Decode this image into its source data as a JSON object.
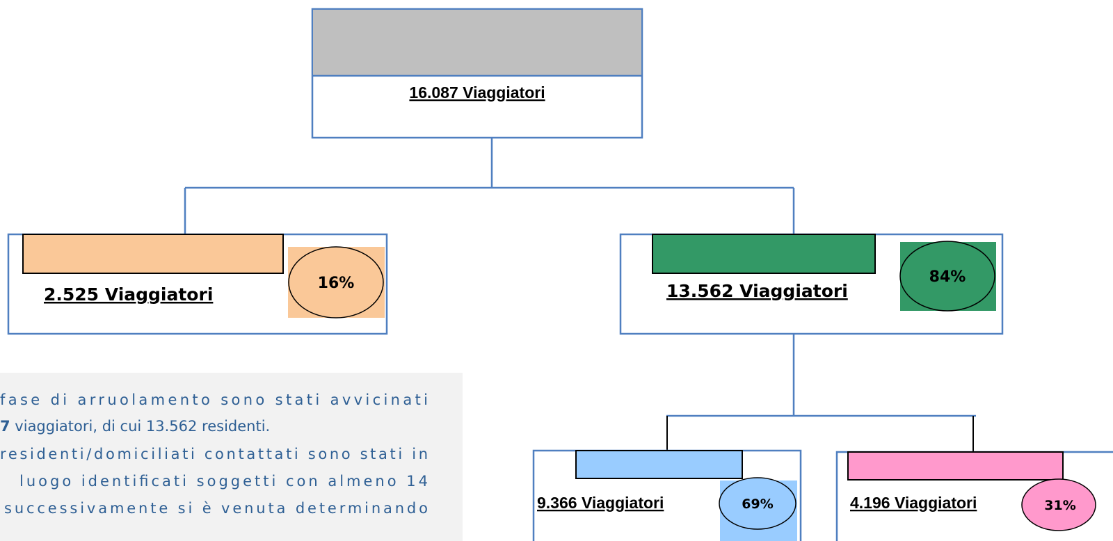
{
  "nodes": [
    {
      "label": "16.087 Viaggiatori"
    },
    {
      "label": "2.525 Viaggiatori",
      "percent": "16%"
    },
    {
      "label": "13.562 Viaggiatori",
      "percent": "84%"
    },
    {
      "label": "9.366 Viaggiatori",
      "percent": "69%"
    },
    {
      "label": "4.196 Viaggiatori",
      "percent": "31%"
    }
  ],
  "text_panel": {
    "lines": [
      {
        "text": "fase di arruolamento sono stati avvicinati"
      },
      {
        "bold": "7",
        "text": " viaggiatori, di cui 13.562 residenti."
      },
      {
        "text": "residenti/domiciliati contattati sono stati in"
      },
      {
        "text": "luogo identificati soggetti con almeno 14"
      },
      {
        "text": "successivamente si è venuta determinando"
      }
    ]
  }
}
